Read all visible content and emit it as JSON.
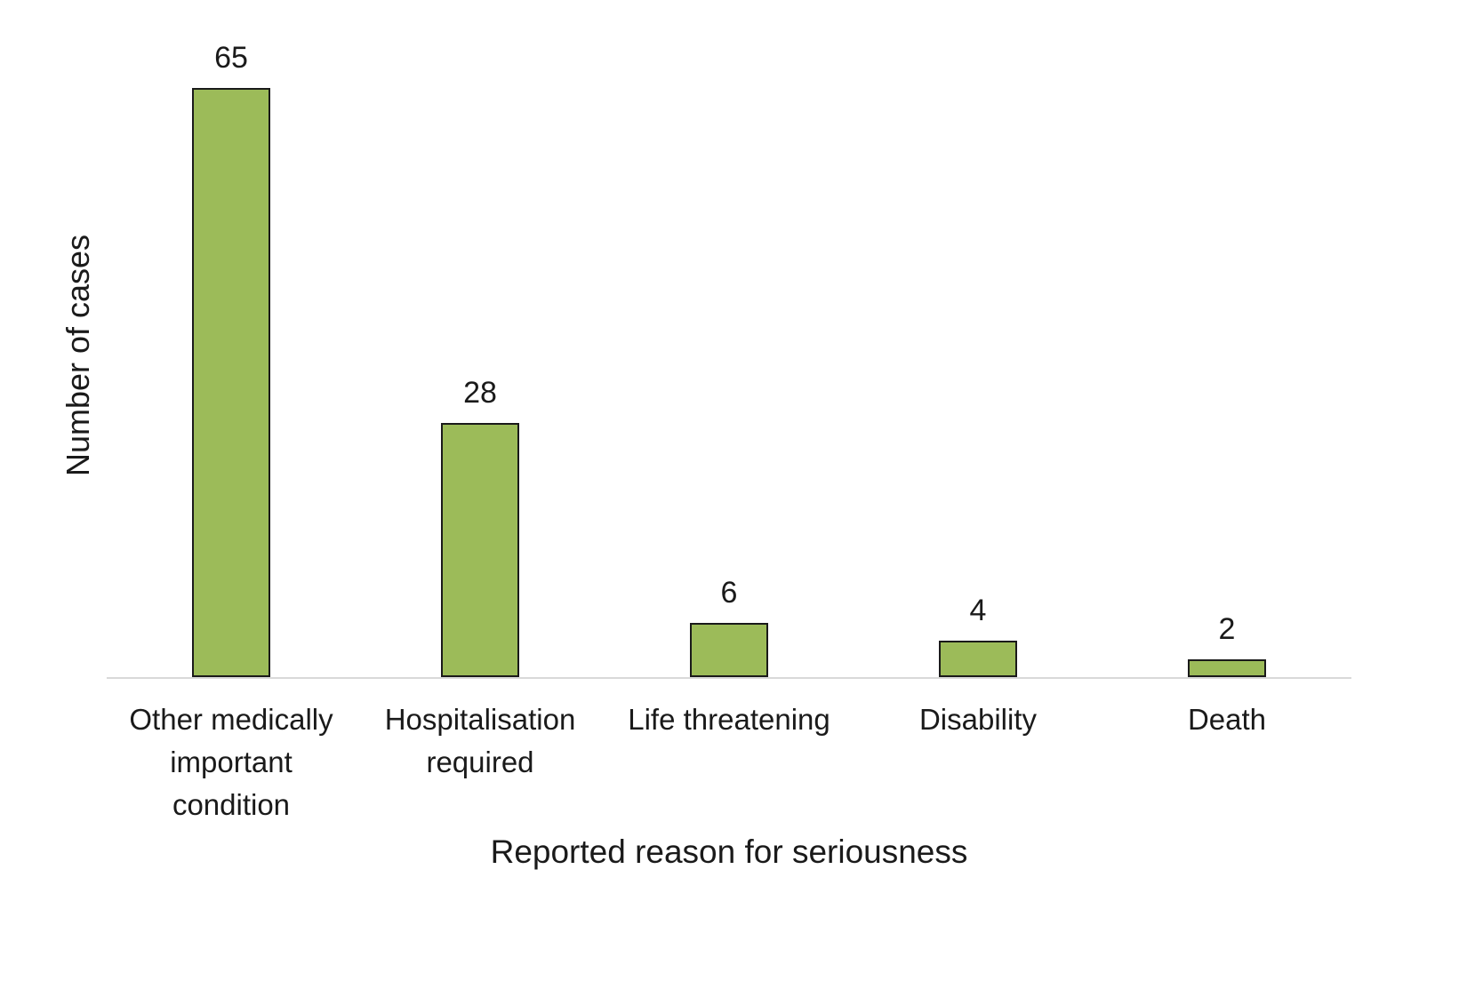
{
  "chart_data": {
    "type": "bar",
    "categories": [
      "Other medically important condition",
      "Hospitalisation required",
      "Life threatening",
      "Disability",
      "Death"
    ],
    "values": [
      65,
      28,
      6,
      4,
      2
    ],
    "title": "",
    "xlabel": "Reported reason for seriousness",
    "ylabel": "Number of cases",
    "ylim": [
      0,
      70
    ],
    "grid": false,
    "legend": "none",
    "bar_color": "#9cbb59",
    "bar_border_color": "#1a1a1a",
    "axis_line_color": "#d9d9d9"
  }
}
